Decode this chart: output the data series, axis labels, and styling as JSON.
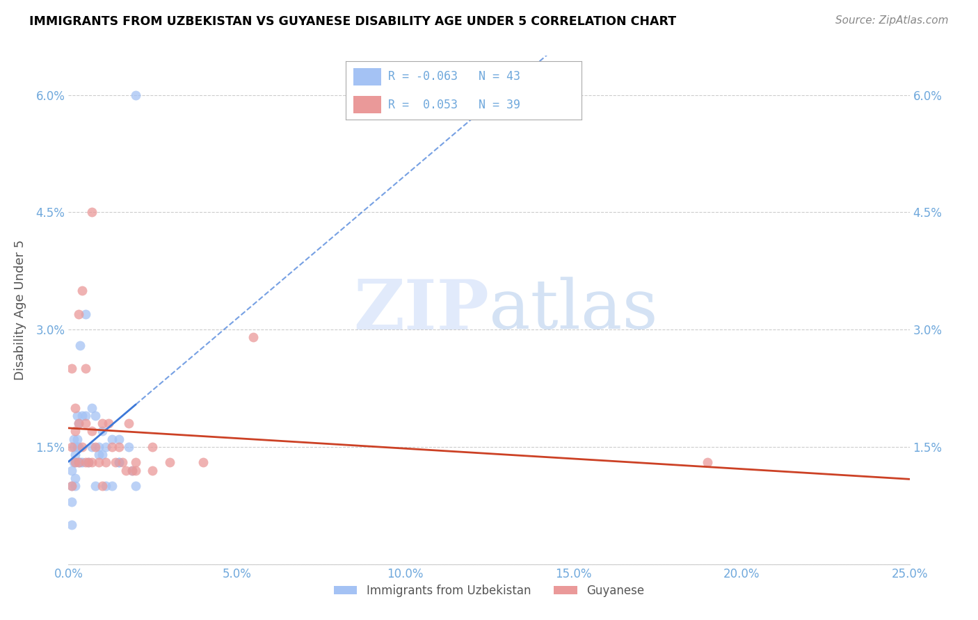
{
  "title": "IMMIGRANTS FROM UZBEKISTAN VS GUYANESE DISABILITY AGE UNDER 5 CORRELATION CHART",
  "source": "Source: ZipAtlas.com",
  "ylabel": "Disability Age Under 5",
  "xmin": 0.0,
  "xmax": 25.0,
  "ymin": 0.0,
  "ymax": 6.5,
  "yticks": [
    0.0,
    1.5,
    3.0,
    4.5,
    6.0
  ],
  "ytick_labels": [
    "",
    "1.5%",
    "3.0%",
    "4.5%",
    "6.0%"
  ],
  "xticks": [
    0.0,
    5.0,
    10.0,
    15.0,
    20.0,
    25.0
  ],
  "xtick_labels": [
    "0.0%",
    "5.0%",
    "10.0%",
    "15.0%",
    "20.0%",
    "25.0%"
  ],
  "legend_labels": [
    "Immigrants from Uzbekistan",
    "Guyanese"
  ],
  "r_uzbekistan": -0.063,
  "n_uzbekistan": 43,
  "r_guyanese": 0.053,
  "n_guyanese": 39,
  "blue_color": "#a4c2f4",
  "pink_color": "#ea9999",
  "trend_blue": "#3c78d8",
  "trend_pink": "#cc4125",
  "axis_label_color": "#6fa8dc",
  "title_color": "#000000",
  "uzbekistan_x": [
    0.1,
    0.1,
    0.1,
    0.1,
    0.15,
    0.15,
    0.15,
    0.2,
    0.2,
    0.2,
    0.2,
    0.25,
    0.25,
    0.25,
    0.3,
    0.3,
    0.3,
    0.35,
    0.35,
    0.4,
    0.4,
    0.5,
    0.5,
    0.6,
    0.7,
    0.7,
    0.8,
    0.8,
    0.9,
    0.9,
    1.0,
    1.0,
    1.1,
    1.1,
    1.3,
    1.3,
    1.5,
    1.5,
    1.5,
    1.8,
    1.9,
    2.0,
    2.0
  ],
  "uzbekistan_y": [
    0.5,
    0.8,
    1.0,
    1.2,
    1.3,
    1.5,
    1.6,
    1.0,
    1.1,
    1.3,
    1.4,
    1.5,
    1.6,
    1.9,
    1.3,
    1.5,
    1.8,
    2.8,
    1.3,
    1.9,
    1.3,
    1.9,
    3.2,
    1.3,
    2.0,
    1.5,
    1.9,
    1.0,
    1.5,
    1.4,
    1.7,
    1.4,
    1.5,
    1.0,
    1.6,
    1.0,
    1.3,
    1.6,
    1.3,
    1.5,
    1.2,
    1.0,
    6.0
  ],
  "guyanese_x": [
    0.1,
    0.1,
    0.1,
    0.2,
    0.2,
    0.2,
    0.3,
    0.3,
    0.3,
    0.4,
    0.4,
    0.5,
    0.5,
    0.5,
    0.6,
    0.7,
    0.7,
    0.7,
    0.8,
    0.9,
    1.0,
    1.0,
    1.1,
    1.2,
    1.3,
    1.4,
    1.5,
    1.6,
    1.7,
    1.8,
    1.9,
    2.0,
    2.0,
    2.5,
    2.5,
    3.0,
    4.0,
    5.5,
    19.0
  ],
  "guyanese_y": [
    1.0,
    1.5,
    2.5,
    1.3,
    1.7,
    2.0,
    1.3,
    1.8,
    3.2,
    1.5,
    3.5,
    1.3,
    1.8,
    2.5,
    1.3,
    1.3,
    1.7,
    4.5,
    1.5,
    1.3,
    1.0,
    1.8,
    1.3,
    1.8,
    1.5,
    1.3,
    1.5,
    1.3,
    1.2,
    1.8,
    1.2,
    1.3,
    1.2,
    1.2,
    1.5,
    1.3,
    1.3,
    2.9,
    1.3
  ],
  "watermark_zip": "ZIP",
  "watermark_atlas": "atlas",
  "background_color": "#ffffff",
  "grid_color": "#cccccc"
}
